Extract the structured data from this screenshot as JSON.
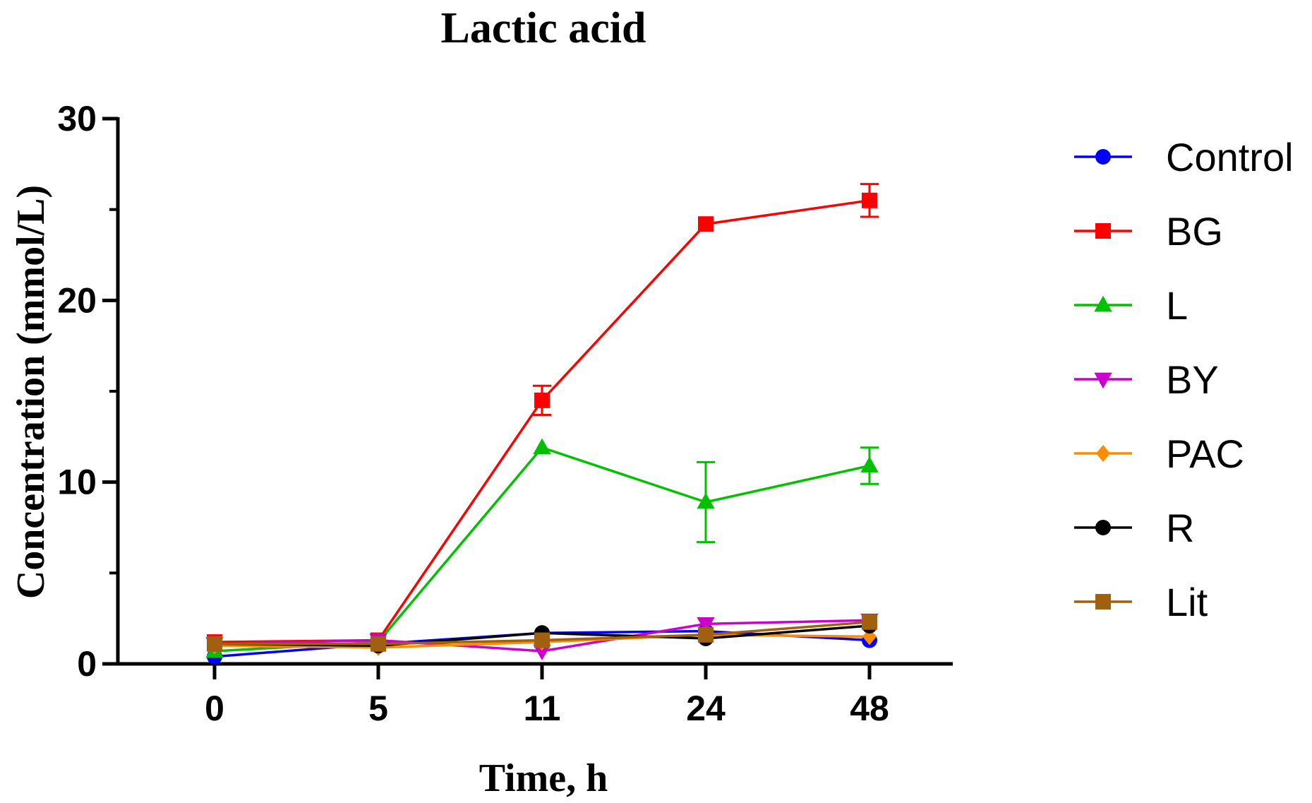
{
  "chart_data": {
    "type": "line",
    "title": "Lactic acid",
    "xlabel": "Time, h",
    "ylabel": "Concentration (mmol/L)",
    "categories": [
      "0",
      "5",
      "11",
      "24",
      "48"
    ],
    "ylim": [
      0,
      30
    ],
    "yticks": [
      0,
      10,
      20,
      30
    ],
    "grid": false,
    "legend_position": "right",
    "series": [
      {
        "name": "Control",
        "color": "#0000ff",
        "marker": "circle",
        "values": [
          0.4,
          1.1,
          1.7,
          1.8,
          1.3
        ],
        "errors": [
          0.1,
          0.1,
          0.15,
          0.15,
          0.1
        ]
      },
      {
        "name": "BG",
        "color": "#ff0000",
        "marker": "square",
        "values": [
          1.2,
          1.3,
          14.5,
          24.2,
          25.5
        ],
        "errors": [
          0.1,
          0.1,
          0.8,
          0.2,
          0.9
        ]
      },
      {
        "name": "L",
        "color": "#00c000",
        "marker": "triangle-up",
        "values": [
          0.7,
          1.2,
          11.9,
          8.9,
          10.9
        ],
        "errors": [
          0.1,
          0.1,
          0.3,
          2.2,
          1.0
        ]
      },
      {
        "name": "BY",
        "color": "#cc00cc",
        "marker": "triangle-down",
        "values": [
          1.1,
          1.3,
          0.7,
          2.2,
          2.4
        ],
        "errors": [
          0.1,
          0.1,
          0.1,
          0.2,
          0.2
        ]
      },
      {
        "name": "PAC",
        "color": "#ff8c00",
        "marker": "diamond",
        "values": [
          1.0,
          0.9,
          1.2,
          1.6,
          1.5
        ],
        "errors": [
          0.1,
          0.1,
          0.1,
          0.1,
          0.1
        ]
      },
      {
        "name": "R",
        "color": "#000000",
        "marker": "circle",
        "values": [
          1.1,
          1.0,
          1.7,
          1.4,
          2.1
        ],
        "errors": [
          0.1,
          0.1,
          0.1,
          0.15,
          0.15
        ]
      },
      {
        "name": "Lit",
        "color": "#a0600f",
        "marker": "square",
        "values": [
          1.1,
          1.1,
          1.3,
          1.6,
          2.3
        ],
        "errors": [
          0.1,
          0.1,
          0.1,
          0.1,
          0.2
        ]
      }
    ]
  }
}
